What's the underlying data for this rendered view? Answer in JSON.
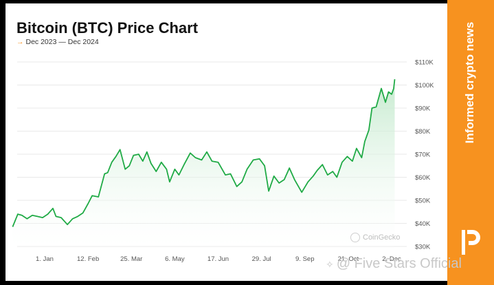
{
  "header": {
    "title": "Bitcoin (BTC) Price Chart",
    "subtitle_arrow": "→",
    "subtitle": "Dec 2023 — Dec 2024"
  },
  "side_band": {
    "text": "Informed crypto news",
    "color": "#f7921f"
  },
  "source_badge": "CoinGecko",
  "watermark": {
    "icon": "sparkle-icon",
    "text": "@ Five Stars Official"
  },
  "colors": {
    "line": "#1faa45",
    "fill_top": "#bfe8c9",
    "accent": "#f7921f",
    "grid": "#e9e9e9"
  },
  "chart_data": {
    "type": "area",
    "title": "Bitcoin (BTC) Price Chart",
    "subtitle": "Dec 2023 — Dec 2024",
    "xlabel": "",
    "ylabel": "",
    "ylim": [
      30000,
      110000
    ],
    "grid": true,
    "y_axis_position": "right",
    "y_ticks": [
      {
        "value": 110000,
        "label": "$110K"
      },
      {
        "value": 100000,
        "label": "$100K"
      },
      {
        "value": 90000,
        "label": "$90K"
      },
      {
        "value": 80000,
        "label": "$80K"
      },
      {
        "value": 70000,
        "label": "$70K"
      },
      {
        "value": 60000,
        "label": "$60K"
      },
      {
        "value": 50000,
        "label": "$50K"
      },
      {
        "value": 40000,
        "label": "$40K"
      },
      {
        "value": 30000,
        "label": "$30K"
      }
    ],
    "x_ticks": [
      {
        "date": "2024-01-01",
        "label": "1. Jan"
      },
      {
        "date": "2024-02-12",
        "label": "12. Feb"
      },
      {
        "date": "2024-03-25",
        "label": "25. Mar"
      },
      {
        "date": "2024-05-06",
        "label": "6. May"
      },
      {
        "date": "2024-06-17",
        "label": "17. Jun"
      },
      {
        "date": "2024-07-29",
        "label": "29. Jul"
      },
      {
        "date": "2024-09-09",
        "label": "9. Sep"
      },
      {
        "date": "2024-10-21",
        "label": "21. Oct"
      },
      {
        "date": "2024-12-02",
        "label": "2. Dec"
      }
    ],
    "series": [
      {
        "values": [
          [
            "2023-12-01",
            38500
          ],
          [
            "2023-12-06",
            44000
          ],
          [
            "2023-12-10",
            43500
          ],
          [
            "2023-12-15",
            42000
          ],
          [
            "2023-12-20",
            43500
          ],
          [
            "2023-12-25",
            43000
          ],
          [
            "2023-12-30",
            42500
          ],
          [
            "2024-01-04",
            44000
          ],
          [
            "2024-01-09",
            46500
          ],
          [
            "2024-01-12",
            43000
          ],
          [
            "2024-01-17",
            42500
          ],
          [
            "2024-01-23",
            39500
          ],
          [
            "2024-01-28",
            42000
          ],
          [
            "2024-02-02",
            43000
          ],
          [
            "2024-02-07",
            44500
          ],
          [
            "2024-02-12",
            48500
          ],
          [
            "2024-02-16",
            52000
          ],
          [
            "2024-02-22",
            51500
          ],
          [
            "2024-02-28",
            61500
          ],
          [
            "2024-03-02",
            62000
          ],
          [
            "2024-03-06",
            66500
          ],
          [
            "2024-03-10",
            69000
          ],
          [
            "2024-03-14",
            72000
          ],
          [
            "2024-03-19",
            63500
          ],
          [
            "2024-03-23",
            65000
          ],
          [
            "2024-03-27",
            69500
          ],
          [
            "2024-04-01",
            70000
          ],
          [
            "2024-04-05",
            67000
          ],
          [
            "2024-04-09",
            71000
          ],
          [
            "2024-04-13",
            66000
          ],
          [
            "2024-04-18",
            62500
          ],
          [
            "2024-04-23",
            66500
          ],
          [
            "2024-04-28",
            63500
          ],
          [
            "2024-05-01",
            58000
          ],
          [
            "2024-05-06",
            63500
          ],
          [
            "2024-05-10",
            61000
          ],
          [
            "2024-05-15",
            65500
          ],
          [
            "2024-05-21",
            70500
          ],
          [
            "2024-05-26",
            68500
          ],
          [
            "2024-06-01",
            67500
          ],
          [
            "2024-06-06",
            71000
          ],
          [
            "2024-06-11",
            67000
          ],
          [
            "2024-06-17",
            66500
          ],
          [
            "2024-06-24",
            61000
          ],
          [
            "2024-06-29",
            61500
          ],
          [
            "2024-07-05",
            56000
          ],
          [
            "2024-07-10",
            58000
          ],
          [
            "2024-07-15",
            63500
          ],
          [
            "2024-07-21",
            67500
          ],
          [
            "2024-07-27",
            68000
          ],
          [
            "2024-08-01",
            65000
          ],
          [
            "2024-08-05",
            54000
          ],
          [
            "2024-08-10",
            60500
          ],
          [
            "2024-08-15",
            57500
          ],
          [
            "2024-08-20",
            59000
          ],
          [
            "2024-08-25",
            64000
          ],
          [
            "2024-08-30",
            59000
          ],
          [
            "2024-09-06",
            53500
          ],
          [
            "2024-09-12",
            58000
          ],
          [
            "2024-09-17",
            60500
          ],
          [
            "2024-09-21",
            63000
          ],
          [
            "2024-09-26",
            65500
          ],
          [
            "2024-10-01",
            61000
          ],
          [
            "2024-10-06",
            62500
          ],
          [
            "2024-10-10",
            60000
          ],
          [
            "2024-10-15",
            66500
          ],
          [
            "2024-10-20",
            69000
          ],
          [
            "2024-10-25",
            67000
          ],
          [
            "2024-10-29",
            72500
          ],
          [
            "2024-11-03",
            68500
          ],
          [
            "2024-11-06",
            75500
          ],
          [
            "2024-11-10",
            80500
          ],
          [
            "2024-11-13",
            90000
          ],
          [
            "2024-11-17",
            90500
          ],
          [
            "2024-11-22",
            98500
          ],
          [
            "2024-11-26",
            92500
          ],
          [
            "2024-11-29",
            97000
          ],
          [
            "2024-12-02",
            96000
          ],
          [
            "2024-12-04",
            98500
          ],
          [
            "2024-12-05",
            102500
          ]
        ]
      }
    ]
  }
}
